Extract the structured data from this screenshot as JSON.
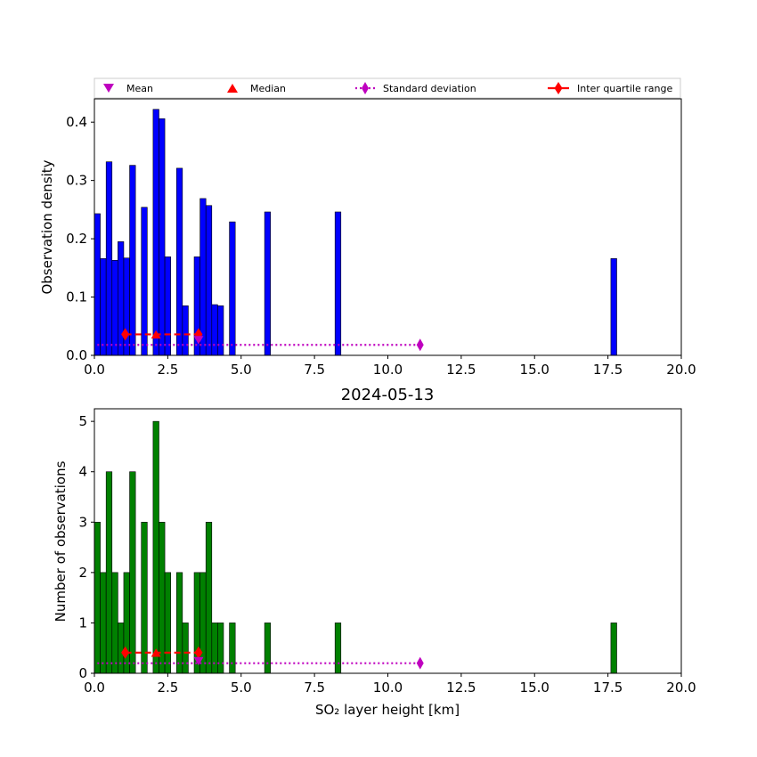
{
  "colors": {
    "density_bars": "#0000ff",
    "count_bars": "#008000",
    "mean": "#bf00bf",
    "median": "#ff0000",
    "std": "#bf00bf",
    "iqr": "#ff0000"
  },
  "legend": {
    "mean": "Mean",
    "median": "Median",
    "std": "Standard deviation",
    "iqr": "Inter quartile range"
  },
  "chart_data": [
    {
      "type": "bar",
      "panel": "top",
      "title": "",
      "xlabel": "",
      "ylabel": "Observation density",
      "xlim": [
        0,
        20
      ],
      "ylim": [
        0,
        0.44
      ],
      "xticks": [
        "0.0",
        "2.5",
        "5.0",
        "7.5",
        "10.0",
        "12.5",
        "15.0",
        "17.5",
        "20.0"
      ],
      "yticks": [
        "0.0",
        "0.1",
        "0.2",
        "0.3",
        "0.4"
      ],
      "bin_width": 0.2,
      "bins": [
        {
          "x": 0.0,
          "y": 0.243
        },
        {
          "x": 0.2,
          "y": 0.166
        },
        {
          "x": 0.4,
          "y": 0.332
        },
        {
          "x": 0.6,
          "y": 0.163
        },
        {
          "x": 0.8,
          "y": 0.195
        },
        {
          "x": 1.0,
          "y": 0.167
        },
        {
          "x": 1.2,
          "y": 0.326
        },
        {
          "x": 1.6,
          "y": 0.254
        },
        {
          "x": 2.0,
          "y": 0.422
        },
        {
          "x": 2.2,
          "y": 0.406
        },
        {
          "x": 2.4,
          "y": 0.169
        },
        {
          "x": 2.8,
          "y": 0.321
        },
        {
          "x": 3.0,
          "y": 0.085
        },
        {
          "x": 3.4,
          "y": 0.169
        },
        {
          "x": 3.6,
          "y": 0.269
        },
        {
          "x": 3.8,
          "y": 0.257
        },
        {
          "x": 4.0,
          "y": 0.087
        },
        {
          "x": 4.2,
          "y": 0.085
        },
        {
          "x": 4.6,
          "y": 0.229
        },
        {
          "x": 5.8,
          "y": 0.246
        },
        {
          "x": 8.2,
          "y": 0.246
        },
        {
          "x": 17.6,
          "y": 0.166
        }
      ],
      "mean": {
        "x": 3.55,
        "y": 0.026
      },
      "median": {
        "x": 2.1,
        "y": 0.036
      },
      "std": {
        "x": [
          0.1,
          11.1
        ],
        "y": 0.018
      },
      "iqr": {
        "x": [
          1.05,
          3.55
        ],
        "y": 0.036
      }
    },
    {
      "type": "bar",
      "panel": "bottom",
      "title": "2024-05-13",
      "xlabel": "SO₂ layer height [km]",
      "ylabel": "Number of observations",
      "xlim": [
        0,
        20
      ],
      "ylim": [
        0,
        5.25
      ],
      "xticks": [
        "0.0",
        "2.5",
        "5.0",
        "7.5",
        "10.0",
        "12.5",
        "15.0",
        "17.5",
        "20.0"
      ],
      "yticks": [
        "0",
        "1",
        "2",
        "3",
        "4",
        "5"
      ],
      "bin_width": 0.2,
      "bins": [
        {
          "x": 0.0,
          "y": 3
        },
        {
          "x": 0.2,
          "y": 2
        },
        {
          "x": 0.4,
          "y": 4
        },
        {
          "x": 0.6,
          "y": 2
        },
        {
          "x": 0.8,
          "y": 1
        },
        {
          "x": 1.0,
          "y": 2
        },
        {
          "x": 1.2,
          "y": 4
        },
        {
          "x": 1.6,
          "y": 3
        },
        {
          "x": 2.0,
          "y": 5
        },
        {
          "x": 2.2,
          "y": 3
        },
        {
          "x": 2.4,
          "y": 2
        },
        {
          "x": 2.8,
          "y": 2
        },
        {
          "x": 3.0,
          "y": 1
        },
        {
          "x": 3.4,
          "y": 2
        },
        {
          "x": 3.6,
          "y": 2
        },
        {
          "x": 3.8,
          "y": 3
        },
        {
          "x": 4.0,
          "y": 1
        },
        {
          "x": 4.2,
          "y": 1
        },
        {
          "x": 4.6,
          "y": 1
        },
        {
          "x": 5.8,
          "y": 1
        },
        {
          "x": 8.2,
          "y": 1
        },
        {
          "x": 17.6,
          "y": 1
        }
      ],
      "mean": {
        "x": 3.55,
        "y": 0.24
      },
      "median": {
        "x": 2.1,
        "y": 0.41
      },
      "std": {
        "x": [
          0.1,
          11.1
        ],
        "y": 0.2
      },
      "iqr": {
        "x": [
          1.05,
          3.55
        ],
        "y": 0.41
      }
    }
  ]
}
